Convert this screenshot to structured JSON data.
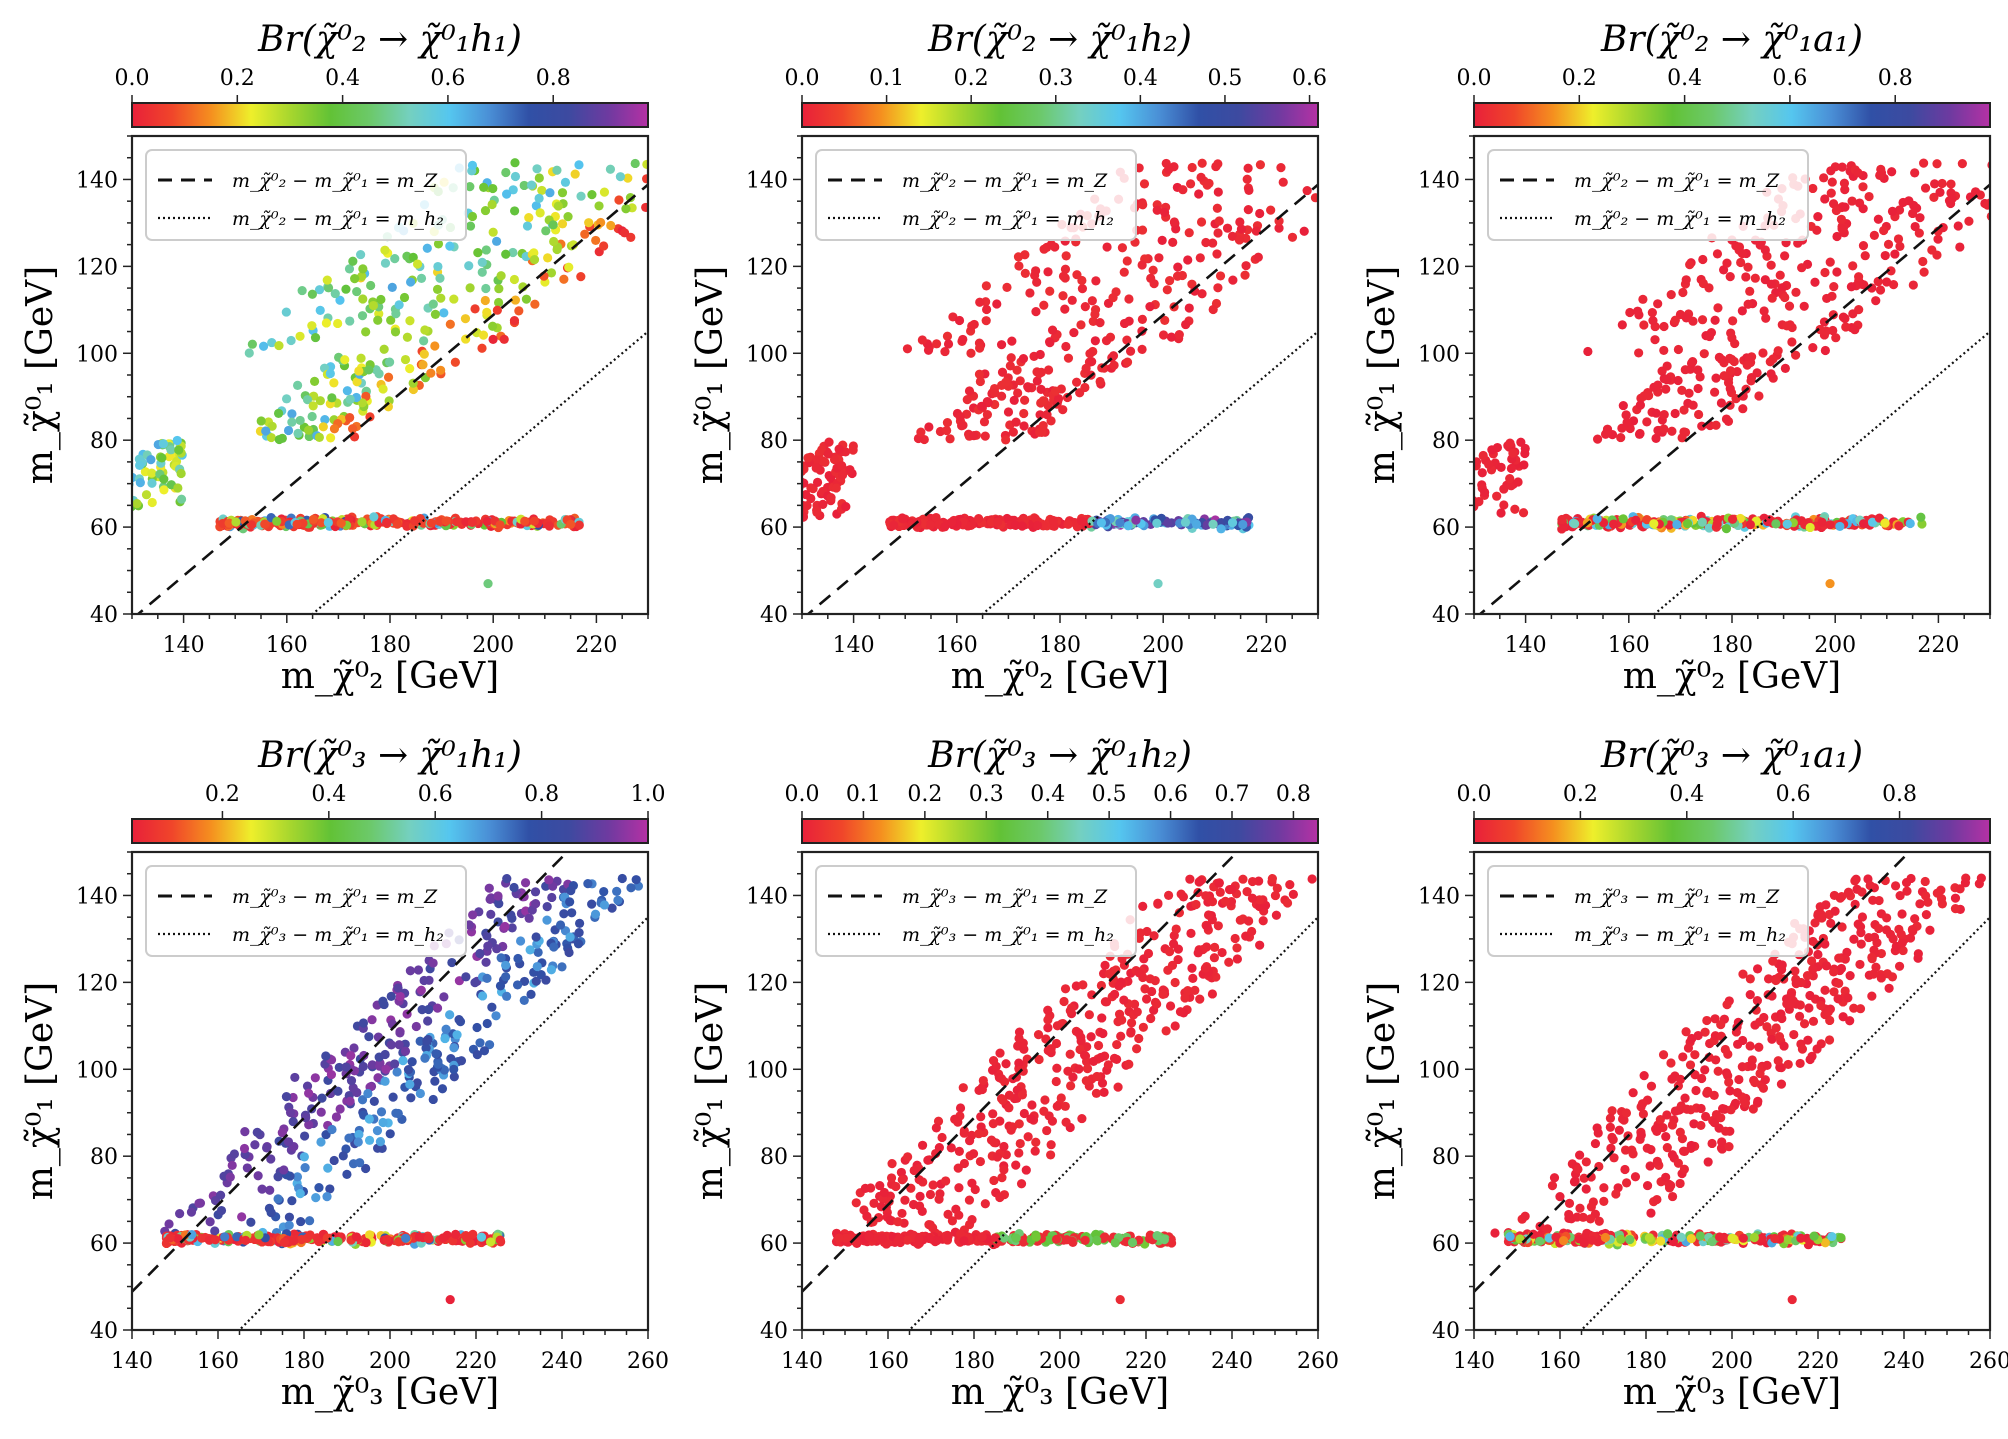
{
  "figure": {
    "colormap": [
      "#e8203a",
      "#f0452a",
      "#f5901f",
      "#eeef2b",
      "#a6d62e",
      "#62c236",
      "#6cc96a",
      "#74d0c0",
      "#55c6ef",
      "#4a8fd6",
      "#3050a6",
      "#3d4aa0",
      "#6e3aa0",
      "#b531a4"
    ]
  },
  "chart_data": [
    {
      "type": "scatter",
      "panel": "top-left",
      "title": "Br(χ̃⁰₂ → χ̃⁰₁h₁)",
      "xlabel": "m_χ̃⁰₂ [GeV]",
      "ylabel": "m_χ̃⁰₁ [GeV]",
      "xlim": [
        130,
        230
      ],
      "ylim": [
        40,
        150
      ],
      "xticks": [
        140,
        160,
        180,
        200,
        220
      ],
      "yticks": [
        40,
        60,
        80,
        100,
        120,
        140
      ],
      "colorbar": {
        "range": [
          0.0,
          0.98
        ],
        "ticks": [
          0.0,
          0.2,
          0.4,
          0.6,
          0.8
        ],
        "tick_labels": [
          "0.0",
          "0.2",
          "0.4",
          "0.6",
          "0.8"
        ]
      },
      "legend": {
        "placement": "top-left",
        "entries": [
          {
            "style": "dashed",
            "label": "m_χ̃⁰₂ − m_χ̃⁰₁ = m_Z",
            "offset": 91.2
          },
          {
            "style": "dotted",
            "label": "m_χ̃⁰₂ − m_χ̃⁰₁ = m_h₂",
            "offset": 125
          }
        ]
      },
      "pattern": "mixed_low_high"
    },
    {
      "type": "scatter",
      "panel": "top-middle",
      "title": "Br(χ̃⁰₂ → χ̃⁰₁h₂)",
      "xlabel": "m_χ̃⁰₂ [GeV]",
      "ylabel": "m_χ̃⁰₁ [GeV]",
      "xlim": [
        130,
        230
      ],
      "ylim": [
        40,
        150
      ],
      "xticks": [
        140,
        160,
        180,
        200,
        220
      ],
      "yticks": [
        40,
        60,
        80,
        100,
        120,
        140
      ],
      "colorbar": {
        "range": [
          0.0,
          0.61
        ],
        "ticks": [
          0.0,
          0.1,
          0.2,
          0.3,
          0.4,
          0.5,
          0.6
        ],
        "tick_labels": [
          "0.0",
          "0.1",
          "0.2",
          "0.3",
          "0.4",
          "0.5",
          "0.6"
        ]
      },
      "legend": {
        "placement": "top-left",
        "entries": [
          {
            "style": "dashed",
            "label": "m_χ̃⁰₂ − m_χ̃⁰₁ = m_Z",
            "offset": 91.2
          },
          {
            "style": "dotted",
            "label": "m_χ̃⁰₂ − m_χ̃⁰₁ = m_h₂",
            "offset": 125
          }
        ]
      },
      "pattern": "red_with_band_tail"
    },
    {
      "type": "scatter",
      "panel": "top-right",
      "title": "Br(χ̃⁰₂ → χ̃⁰₁a₁)",
      "xlabel": "m_χ̃⁰₂ [GeV]",
      "ylabel": "m_χ̃⁰₁ [GeV]",
      "xlim": [
        130,
        230
      ],
      "ylim": [
        40,
        150
      ],
      "xticks": [
        140,
        160,
        180,
        200,
        220
      ],
      "yticks": [
        40,
        60,
        80,
        100,
        120,
        140
      ],
      "colorbar": {
        "range": [
          0.0,
          0.98
        ],
        "ticks": [
          0.0,
          0.2,
          0.4,
          0.6,
          0.8
        ],
        "tick_labels": [
          "0.0",
          "0.2",
          "0.4",
          "0.6",
          "0.8"
        ]
      },
      "legend": {
        "placement": "top-left",
        "entries": [
          {
            "style": "dashed",
            "label": "m_χ̃⁰₂ − m_χ̃⁰₁ = m_Z",
            "offset": 91.2
          },
          {
            "style": "dotted",
            "label": "m_χ̃⁰₂ − m_χ̃⁰₁ = m_h₂",
            "offset": 125
          }
        ]
      },
      "pattern": "red_band_mixed"
    },
    {
      "type": "scatter",
      "panel": "bottom-left",
      "title": "Br(χ̃⁰₃ → χ̃⁰₁h₁)",
      "xlabel": "m_χ̃⁰₃ [GeV]",
      "ylabel": "m_χ̃⁰₁ [GeV]",
      "xlim": [
        140,
        260
      ],
      "ylim": [
        40,
        150
      ],
      "xticks": [
        140,
        160,
        180,
        200,
        220,
        240,
        260
      ],
      "yticks": [
        40,
        60,
        80,
        100,
        120,
        140
      ],
      "colorbar": {
        "range": [
          0.03,
          1.0
        ],
        "ticks": [
          0.2,
          0.4,
          0.6,
          0.8,
          1.0
        ],
        "tick_labels": [
          "0.2",
          "0.4",
          "0.6",
          "0.8",
          "1.0"
        ]
      },
      "legend": {
        "placement": "top-left",
        "entries": [
          {
            "style": "dashed",
            "label": "m_χ̃⁰₃ − m_χ̃⁰₁ = m_Z",
            "offset": 91.2
          },
          {
            "style": "dotted",
            "label": "m_χ̃⁰₃ − m_χ̃⁰₁ = m_h₂",
            "offset": 125
          }
        ]
      },
      "pattern": "purple_gradient"
    },
    {
      "type": "scatter",
      "panel": "bottom-middle",
      "title": "Br(χ̃⁰₃ → χ̃⁰₁h₂)",
      "xlabel": "m_χ̃⁰₃ [GeV]",
      "ylabel": "m_χ̃⁰₁ [GeV]",
      "xlim": [
        140,
        260
      ],
      "ylim": [
        40,
        150
      ],
      "xticks": [
        140,
        160,
        180,
        200,
        220,
        240,
        260
      ],
      "yticks": [
        40,
        60,
        80,
        100,
        120,
        140
      ],
      "colorbar": {
        "range": [
          0.0,
          0.84
        ],
        "ticks": [
          0.0,
          0.1,
          0.2,
          0.3,
          0.4,
          0.5,
          0.6,
          0.7,
          0.8
        ],
        "tick_labels": [
          "0.0",
          "0.1",
          "0.2",
          "0.3",
          "0.4",
          "0.5",
          "0.6",
          "0.7",
          "0.8"
        ]
      },
      "legend": {
        "placement": "top-left",
        "entries": [
          {
            "style": "dashed",
            "label": "m_χ̃⁰₃ − m_χ̃⁰₁ = m_Z",
            "offset": 91.2
          },
          {
            "style": "dotted",
            "label": "m_χ̃⁰₃ − m_χ̃⁰₁ = m_h₂",
            "offset": 125
          }
        ]
      },
      "pattern": "red_with_line_tail"
    },
    {
      "type": "scatter",
      "panel": "bottom-right",
      "title": "Br(χ̃⁰₃ → χ̃⁰₁a₁)",
      "xlabel": "m_χ̃⁰₃ [GeV]",
      "ylabel": "m_χ̃⁰₁ [GeV]",
      "xlim": [
        140,
        260
      ],
      "ylim": [
        40,
        150
      ],
      "xticks": [
        140,
        160,
        180,
        200,
        220,
        240,
        260
      ],
      "yticks": [
        40,
        60,
        80,
        100,
        120,
        140
      ],
      "colorbar": {
        "range": [
          0.0,
          0.97
        ],
        "ticks": [
          0.0,
          0.2,
          0.4,
          0.6,
          0.8
        ],
        "tick_labels": [
          "0.0",
          "0.2",
          "0.4",
          "0.6",
          "0.8"
        ]
      },
      "legend": {
        "placement": "top-left",
        "entries": [
          {
            "style": "dashed",
            "label": "m_χ̃⁰₃ − m_χ̃⁰₁ = m_Z",
            "offset": 91.2
          },
          {
            "style": "dotted",
            "label": "m_χ̃⁰₃ − m_χ̃⁰₁ = m_h₂",
            "offset": 125
          }
        ]
      },
      "pattern": "red_band_mixed"
    }
  ]
}
